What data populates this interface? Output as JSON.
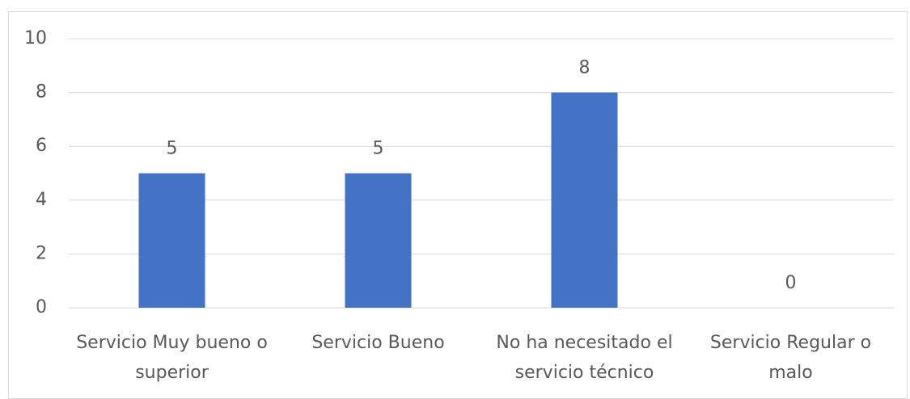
{
  "chart_data": {
    "type": "bar",
    "categories": [
      "Servicio Muy bueno o superior",
      "Servicio Bueno",
      "No ha necesitado el servicio técnico",
      "Servicio Regular o malo"
    ],
    "values": [
      5,
      5,
      8,
      0
    ],
    "color": "#4472c4",
    "ylim": [
      0,
      10
    ],
    "yticks": [
      0,
      2,
      4,
      6,
      8,
      10
    ],
    "grid": true
  }
}
